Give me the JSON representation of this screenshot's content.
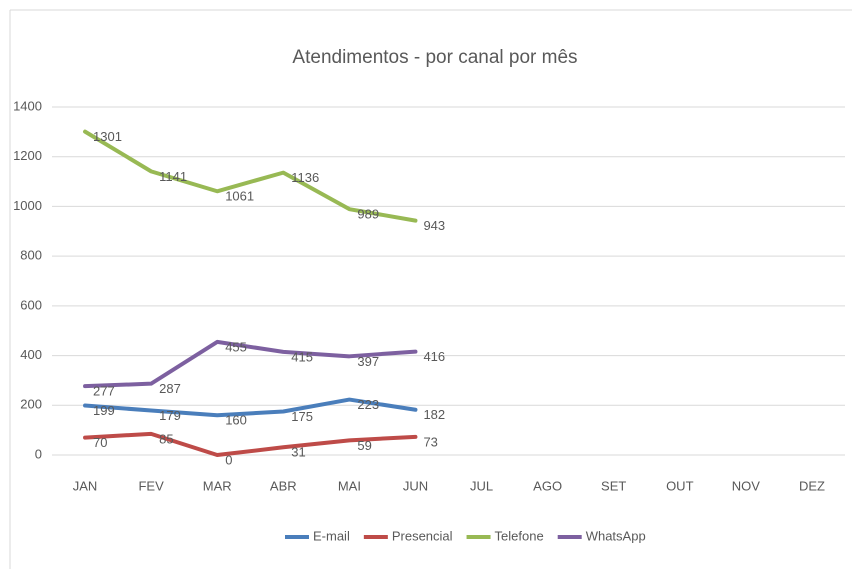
{
  "chart_data": {
    "type": "line",
    "title": "Atendimentos - por canal por mês",
    "categories": [
      "JAN",
      "FEV",
      "MAR",
      "ABR",
      "MAI",
      "JUN",
      "JUL",
      "AGO",
      "SET",
      "OUT",
      "NOV",
      "DEZ"
    ],
    "series": [
      {
        "name": "E-mail",
        "color": "#4a7ebb",
        "values": [
          199,
          179,
          160,
          175,
          223,
          182,
          null,
          null,
          null,
          null,
          null,
          null
        ]
      },
      {
        "name": "Presencial",
        "color": "#be4b48",
        "values": [
          70,
          85,
          0,
          31,
          59,
          73,
          null,
          null,
          null,
          null,
          null,
          null
        ]
      },
      {
        "name": "Telefone",
        "color": "#98b954",
        "values": [
          1301,
          1141,
          1061,
          1136,
          989,
          943,
          null,
          null,
          null,
          null,
          null,
          null
        ]
      },
      {
        "name": "WhatsApp",
        "color": "#7d60a0",
        "values": [
          277,
          287,
          455,
          415,
          397,
          416,
          null,
          null,
          null,
          null,
          null,
          null
        ]
      }
    ],
    "ylim": [
      0,
      1400
    ],
    "yticks": [
      0,
      200,
      400,
      600,
      800,
      1000,
      1200,
      1400
    ],
    "grid": true,
    "legend": "bottom"
  }
}
